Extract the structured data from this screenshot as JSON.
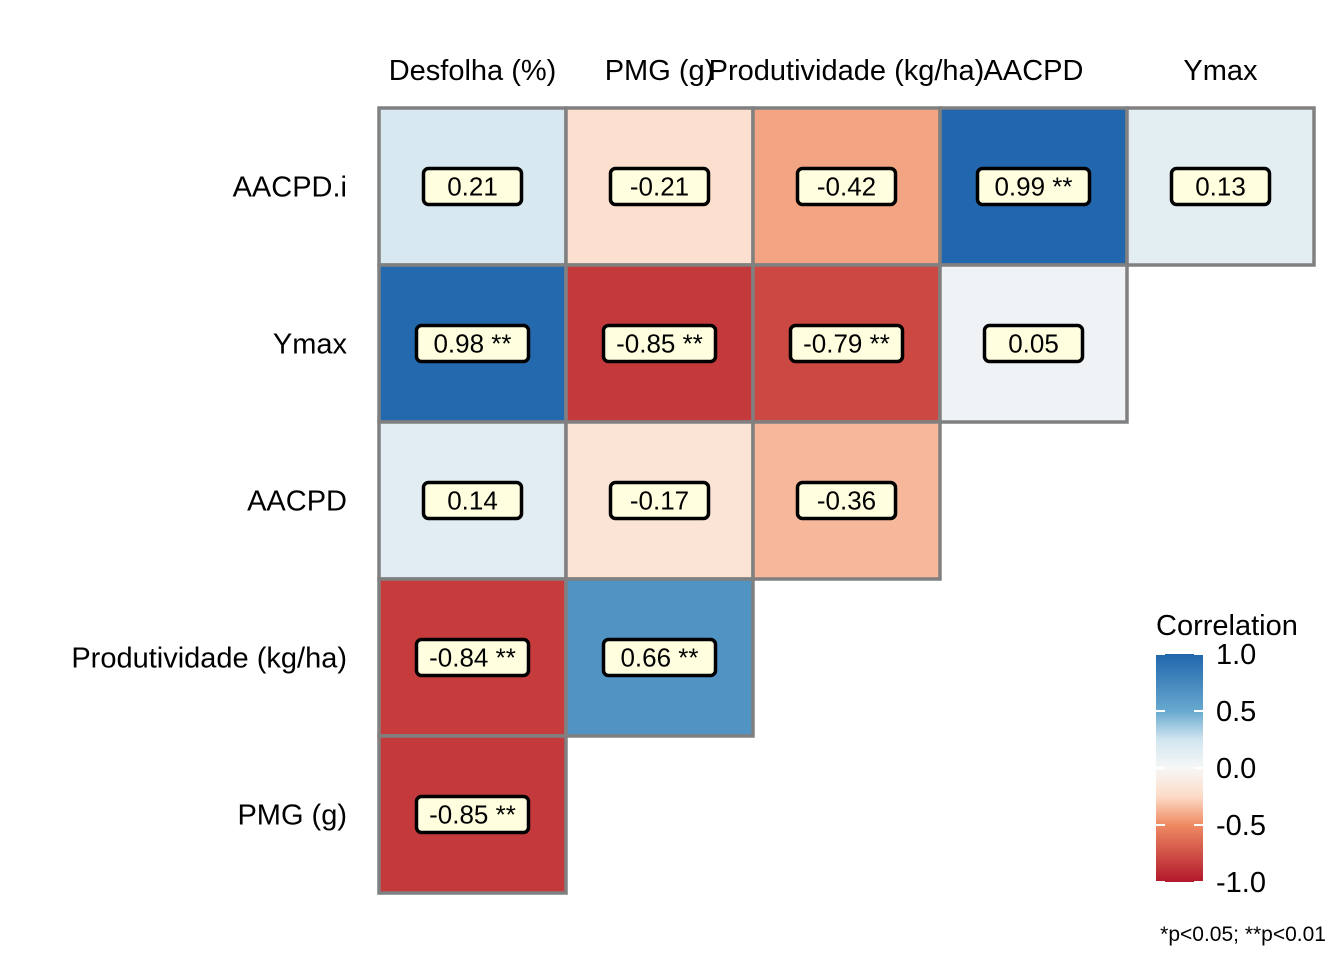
{
  "chart_data": {
    "type": "heatmap",
    "title": "",
    "xlabel": "",
    "ylabel": "",
    "columns": [
      "Desfolha (%)",
      "PMG (g)",
      "Produtividade (kg/ha)",
      "AACPD",
      "Ymax"
    ],
    "rows": [
      "AACPD.i",
      "Ymax",
      "AACPD",
      "Produtividade (kg/ha)",
      "PMG (g)"
    ],
    "cells": [
      {
        "row": 0,
        "col": 0,
        "value": 0.21,
        "label": "0.21"
      },
      {
        "row": 0,
        "col": 1,
        "value": -0.21,
        "label": "-0.21"
      },
      {
        "row": 0,
        "col": 2,
        "value": -0.42,
        "label": "-0.42"
      },
      {
        "row": 0,
        "col": 3,
        "value": 0.99,
        "label": "0.99 **"
      },
      {
        "row": 0,
        "col": 4,
        "value": 0.13,
        "label": "0.13"
      },
      {
        "row": 1,
        "col": 0,
        "value": 0.98,
        "label": "0.98 **"
      },
      {
        "row": 1,
        "col": 1,
        "value": -0.85,
        "label": "-0.85 **"
      },
      {
        "row": 1,
        "col": 2,
        "value": -0.79,
        "label": "-0.79 **"
      },
      {
        "row": 1,
        "col": 3,
        "value": 0.05,
        "label": "0.05"
      },
      {
        "row": 2,
        "col": 0,
        "value": 0.14,
        "label": "0.14"
      },
      {
        "row": 2,
        "col": 1,
        "value": -0.17,
        "label": "-0.17"
      },
      {
        "row": 2,
        "col": 2,
        "value": -0.36,
        "label": "-0.36"
      },
      {
        "row": 3,
        "col": 0,
        "value": -0.84,
        "label": "-0.84 **"
      },
      {
        "row": 3,
        "col": 1,
        "value": 0.66,
        "label": "0.66 **"
      },
      {
        "row": 4,
        "col": 0,
        "value": -0.85,
        "label": "-0.85 **"
      }
    ],
    "legend": {
      "title": "Correlation",
      "position": "right",
      "range": [
        -1.0,
        1.0
      ],
      "ticks": [
        1.0,
        0.5,
        0.0,
        -0.5,
        -1.0
      ],
      "tick_labels": [
        "1.0",
        "0.5",
        "0.0",
        "-0.5",
        "-1.0"
      ]
    },
    "footnote": "*p<0.05; **p<0.01",
    "colors": {
      "positive": "#2166ac",
      "mid": "#f7f7f7",
      "negative": "#b2182b",
      "cell_border": "#808080",
      "label_fill": "#ffffe0",
      "label_stroke": "#000000"
    }
  }
}
